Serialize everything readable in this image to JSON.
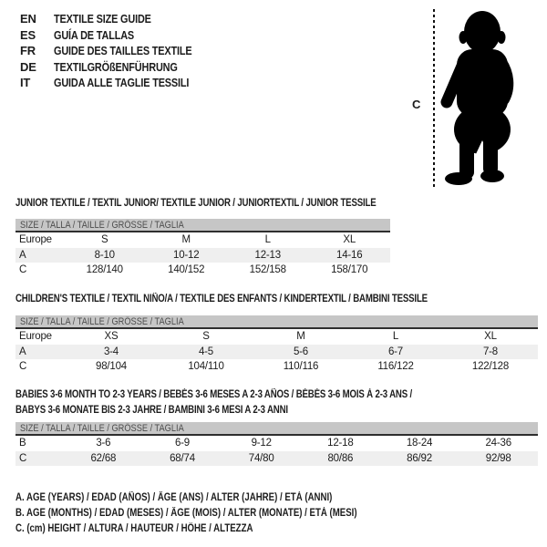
{
  "languages": [
    {
      "code": "EN",
      "label": "TEXTILE SIZE GUIDE"
    },
    {
      "code": "ES",
      "label": "GUÍA DE TALLAS"
    },
    {
      "code": "FR",
      "label": "GUIDE DES TAILLES TEXTILE"
    },
    {
      "code": "DE",
      "label": "TEXTILGRÖßENFÜHRUNG"
    },
    {
      "code": "IT",
      "label": "GUIDA ALLE TAGLIE TESSILI"
    }
  ],
  "figure": {
    "height_label": "C"
  },
  "tables": [
    {
      "title": "JUNIOR TEXTILE / TEXTIL JUNIOR/ TEXTILE JUNIOR / JUNIORTEXTIL / JUNIOR TESSILE",
      "size_header": "SIZE / TALLA / TAILLE / GRÖSSE / TAGLIA",
      "rows": [
        {
          "label": "Europe",
          "values": [
            "S",
            "M",
            "L",
            "XL"
          ]
        },
        {
          "label": "A",
          "values": [
            "8-10",
            "10-12",
            "12-13",
            "14-16"
          ]
        },
        {
          "label": "C",
          "values": [
            "128/140",
            "140/152",
            "152/158",
            "158/170"
          ]
        }
      ]
    },
    {
      "title": "CHILDREN'S TEXTILE / TEXTIL NIÑO/A / TEXTILE DES ENFANTS / KINDERTEXTIL / BAMBINI TESSILE",
      "size_header": "SIZE / TALLA / TAILLE / GRÖSSE / TAGLIA",
      "rows": [
        {
          "label": "Europe",
          "values": [
            "XS",
            "S",
            "M",
            "L",
            "XL"
          ]
        },
        {
          "label": "A",
          "values": [
            "3-4",
            "4-5",
            "5-6",
            "6-7",
            "7-8"
          ]
        },
        {
          "label": "C",
          "values": [
            "98/104",
            "104/110",
            "110/116",
            "116/122",
            "122/128"
          ]
        }
      ]
    },
    {
      "title": "BABIES 3-6 MONTH TO 2-3 YEARS / BEBÉS 3-6 MESES A 2-3 AÑOS / BÉBÉS 3-6 MOIS À 2-3 ANS /",
      "title_line2": "BABYS 3-6 MONATE BIS 2-3 JAHRE / BAMBINI 3-6 MESI A 2-3 ANNI",
      "size_header": "SIZE / TALLA / TAILLE / GRÖSSE / TAGLIA",
      "rows": [
        {
          "label": "B",
          "values": [
            "3-6",
            "6-9",
            "9-12",
            "12-18",
            "18-24",
            "24-36"
          ]
        },
        {
          "label": "C",
          "values": [
            "62/68",
            "68/74",
            "74/80",
            "80/86",
            "86/92",
            "92/98"
          ]
        }
      ]
    }
  ],
  "legend": [
    "A. AGE (YEARS) / EDAD (AÑOS) / ÂGE (ANS) / ALTER (JAHRE) / ETÀ (ANNI)",
    "B. AGE (MONTHS) / EDAD (MESES) / ÂGE (MOIS) / ALTER (MONATE) / ETÀ (MESI)",
    "C. (cm) HEIGHT / ALTURA / HAUTEUR / HÖHE / ALTEZZA"
  ],
  "colors": {
    "size_bar_bg": "#c6c6c6",
    "size_bar_text": "#4d4d4d",
    "row_alt_bg": "#efefef",
    "divider": "#2e2e2e",
    "text": "#1c1c1c",
    "silhouette": "#000000"
  }
}
